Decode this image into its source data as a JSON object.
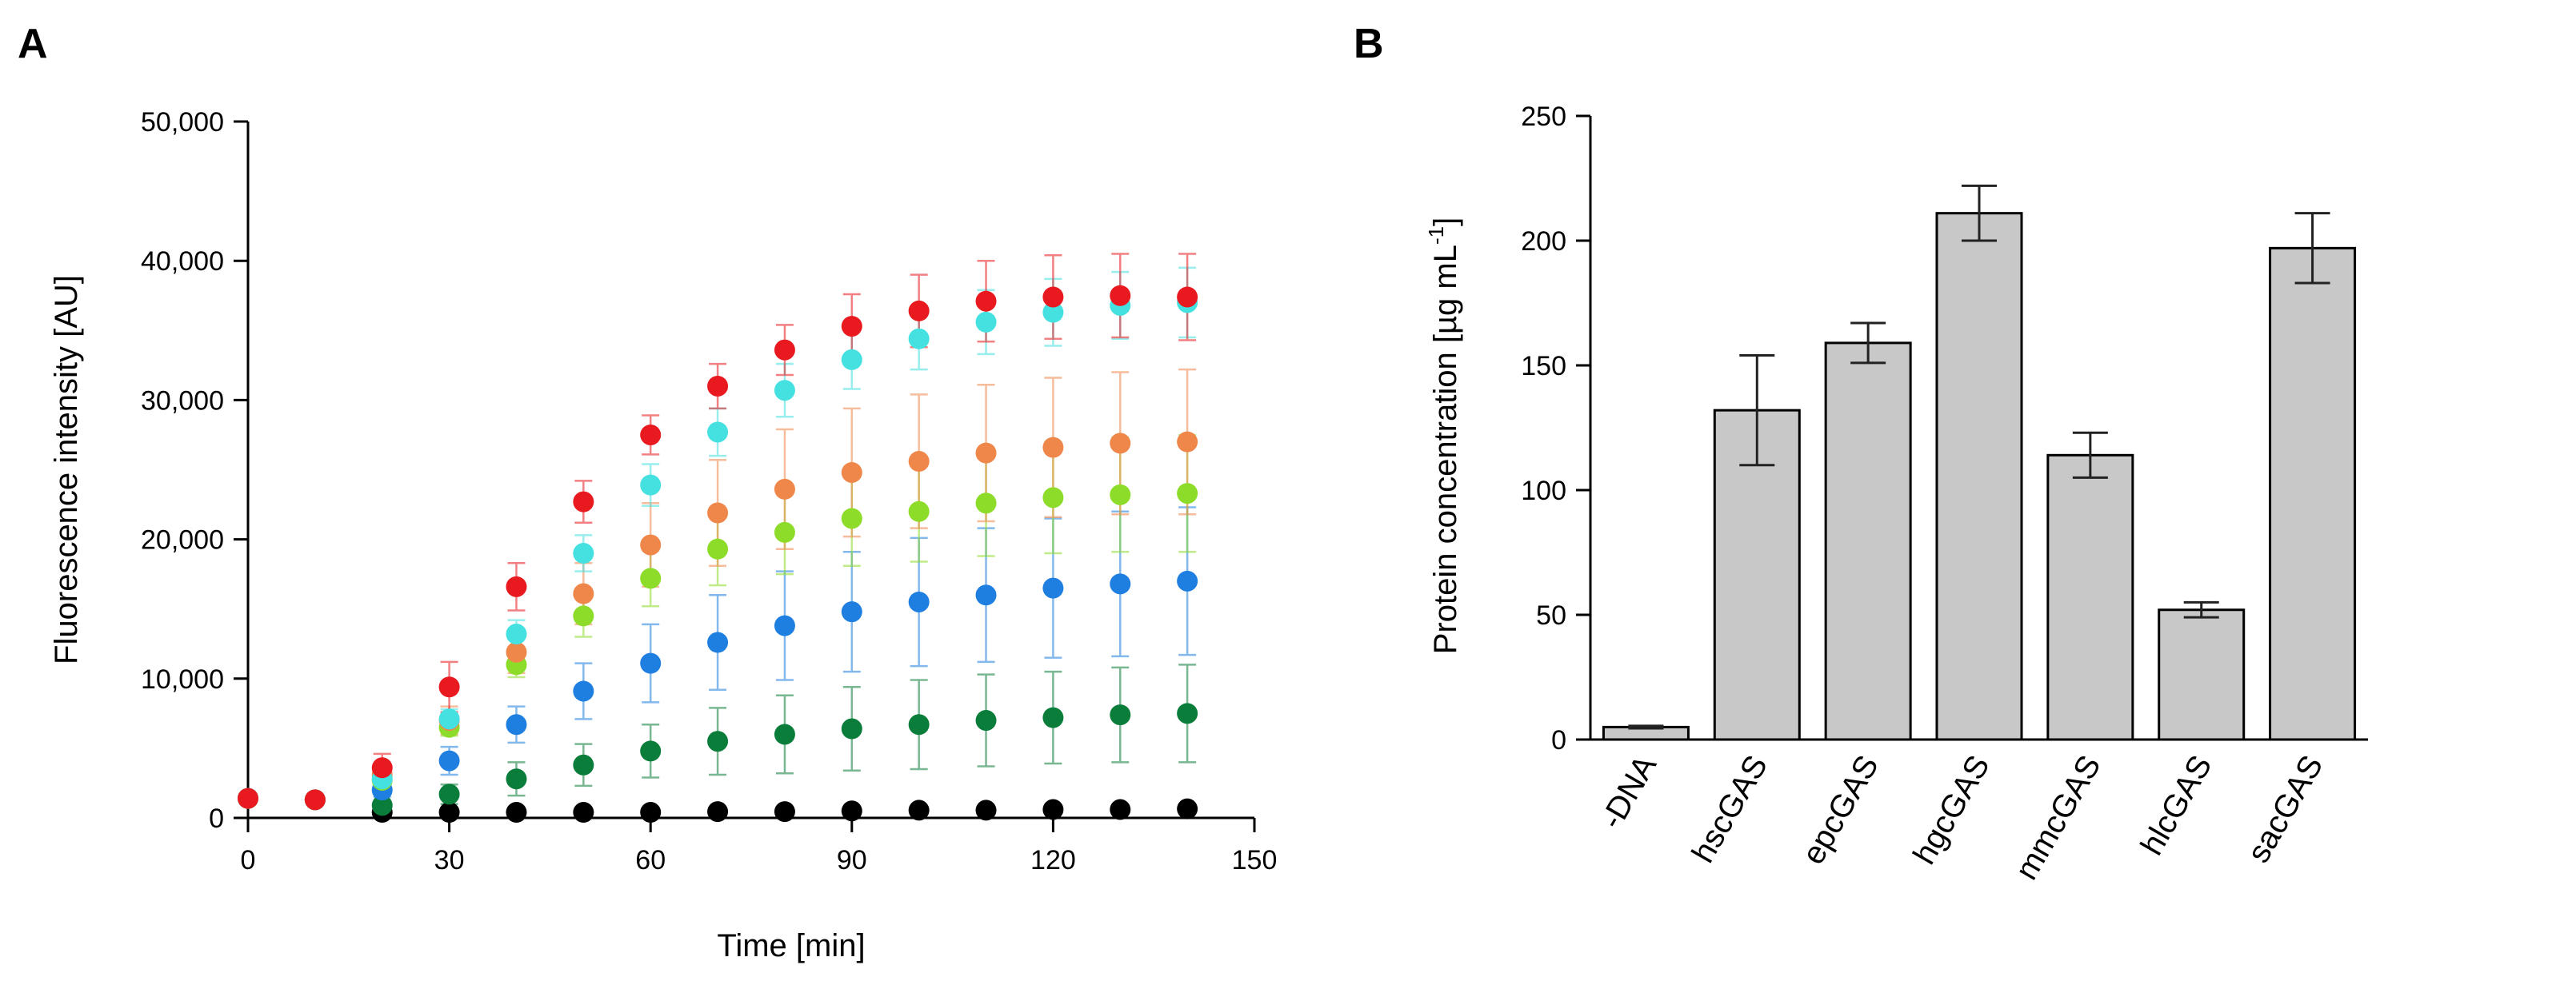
{
  "chart_data": [
    {
      "panel": "A",
      "type": "scatter",
      "xlabel": "Time [min]",
      "ylabel": "Fluorescence intensity [AU]",
      "xlim": [
        0,
        150
      ],
      "ylim": [
        0,
        50000
      ],
      "xticks": [
        0,
        30,
        60,
        90,
        120,
        150
      ],
      "yticks": [
        0,
        10000,
        20000,
        30000,
        40000,
        50000
      ],
      "xtick_labels": [
        "0",
        "30",
        "60",
        "90",
        "120",
        "150"
      ],
      "ytick_labels": [
        "0",
        "10,000",
        "20,000",
        "30,000",
        "40,000",
        "50,000"
      ],
      "grid": false,
      "x": [
        0,
        10,
        20,
        30,
        40,
        50,
        60,
        70,
        80,
        90,
        100,
        110,
        120,
        130,
        140
      ],
      "series": [
        {
          "color": "#000000",
          "values": [
            1400,
            1300,
            400,
            400,
            400,
            400,
            400,
            450,
            450,
            500,
            550,
            550,
            600,
            600,
            650
          ],
          "errors": [
            0,
            0,
            0,
            0,
            0,
            0,
            0,
            0,
            0,
            0,
            0,
            0,
            0,
            0,
            0
          ]
        },
        {
          "color": "#0a7d3a",
          "values": [
            1400,
            1300,
            900,
            1700,
            2800,
            3800,
            4800,
            5500,
            6000,
            6400,
            6700,
            7000,
            7200,
            7400,
            7500
          ],
          "errors": [
            0,
            0,
            300,
            700,
            1200,
            1500,
            1900,
            2400,
            2800,
            3000,
            3200,
            3300,
            3300,
            3400,
            3500
          ]
        },
        {
          "color": "#1e7fe0",
          "values": [
            1400,
            1300,
            2000,
            4100,
            6700,
            9100,
            11100,
            12600,
            13800,
            14800,
            15500,
            16000,
            16500,
            16800,
            17000
          ],
          "errors": [
            0,
            0,
            500,
            1000,
            1300,
            2000,
            2800,
            3400,
            3900,
            4300,
            4600,
            4800,
            5000,
            5200,
            5300
          ]
        },
        {
          "color": "#8edc2a",
          "values": [
            1400,
            1300,
            2700,
            6500,
            11000,
            14500,
            17200,
            19300,
            20500,
            21500,
            22000,
            22600,
            23000,
            23200,
            23300
          ],
          "errors": [
            0,
            0,
            300,
            600,
            900,
            1500,
            2000,
            2600,
            3000,
            3400,
            3600,
            3800,
            4000,
            4100,
            4200
          ]
        },
        {
          "color": "#f0874a",
          "values": [
            1400,
            1300,
            3100,
            7000,
            11900,
            16100,
            19600,
            21900,
            23600,
            24800,
            25600,
            26200,
            26600,
            26900,
            27000
          ],
          "errors": [
            0,
            0,
            500,
            1000,
            1500,
            2200,
            3000,
            3800,
            4300,
            4600,
            4800,
            4900,
            5000,
            5100,
            5200
          ]
        },
        {
          "color": "#45e0e0",
          "values": [
            1400,
            1300,
            2800,
            7100,
            13200,
            19000,
            23900,
            27700,
            30700,
            32900,
            34400,
            35600,
            36300,
            36800,
            37000
          ],
          "errors": [
            0,
            0,
            400,
            700,
            1000,
            1300,
            1500,
            1700,
            1900,
            2100,
            2200,
            2300,
            2400,
            2400,
            2500
          ]
        },
        {
          "color": "#e8191f",
          "values": [
            1400,
            1300,
            3600,
            9400,
            16600,
            22700,
            27500,
            31000,
            33600,
            35300,
            36400,
            37100,
            37400,
            37500,
            37400
          ],
          "errors": [
            0,
            0,
            1000,
            1800,
            1700,
            1500,
            1400,
            1600,
            1800,
            2300,
            2600,
            2900,
            3000,
            3000,
            3100
          ]
        }
      ]
    },
    {
      "panel": "B",
      "type": "bar",
      "categories": [
        "-DNA",
        "hscGAS",
        "epcGAS",
        "hgcGAS",
        "mmcGAS",
        "hlcGAS",
        "sacGAS"
      ],
      "values": [
        5,
        132,
        159,
        211,
        114,
        52,
        197
      ],
      "errors": [
        0.5,
        22,
        8,
        11,
        9,
        3,
        14
      ],
      "ylabel_main": "Protein concentration [µg mL",
      "ylabel_sup": "-1",
      "ylabel_end": "]",
      "ylim": [
        0,
        250
      ],
      "yticks": [
        0,
        50,
        100,
        150,
        200,
        250
      ],
      "ytick_labels": [
        "0",
        "50",
        "100",
        "150",
        "200",
        "250"
      ],
      "bar_color": "#c8c8c8",
      "grid": false
    }
  ],
  "panel_labels": {
    "a": "A",
    "b": "B"
  }
}
